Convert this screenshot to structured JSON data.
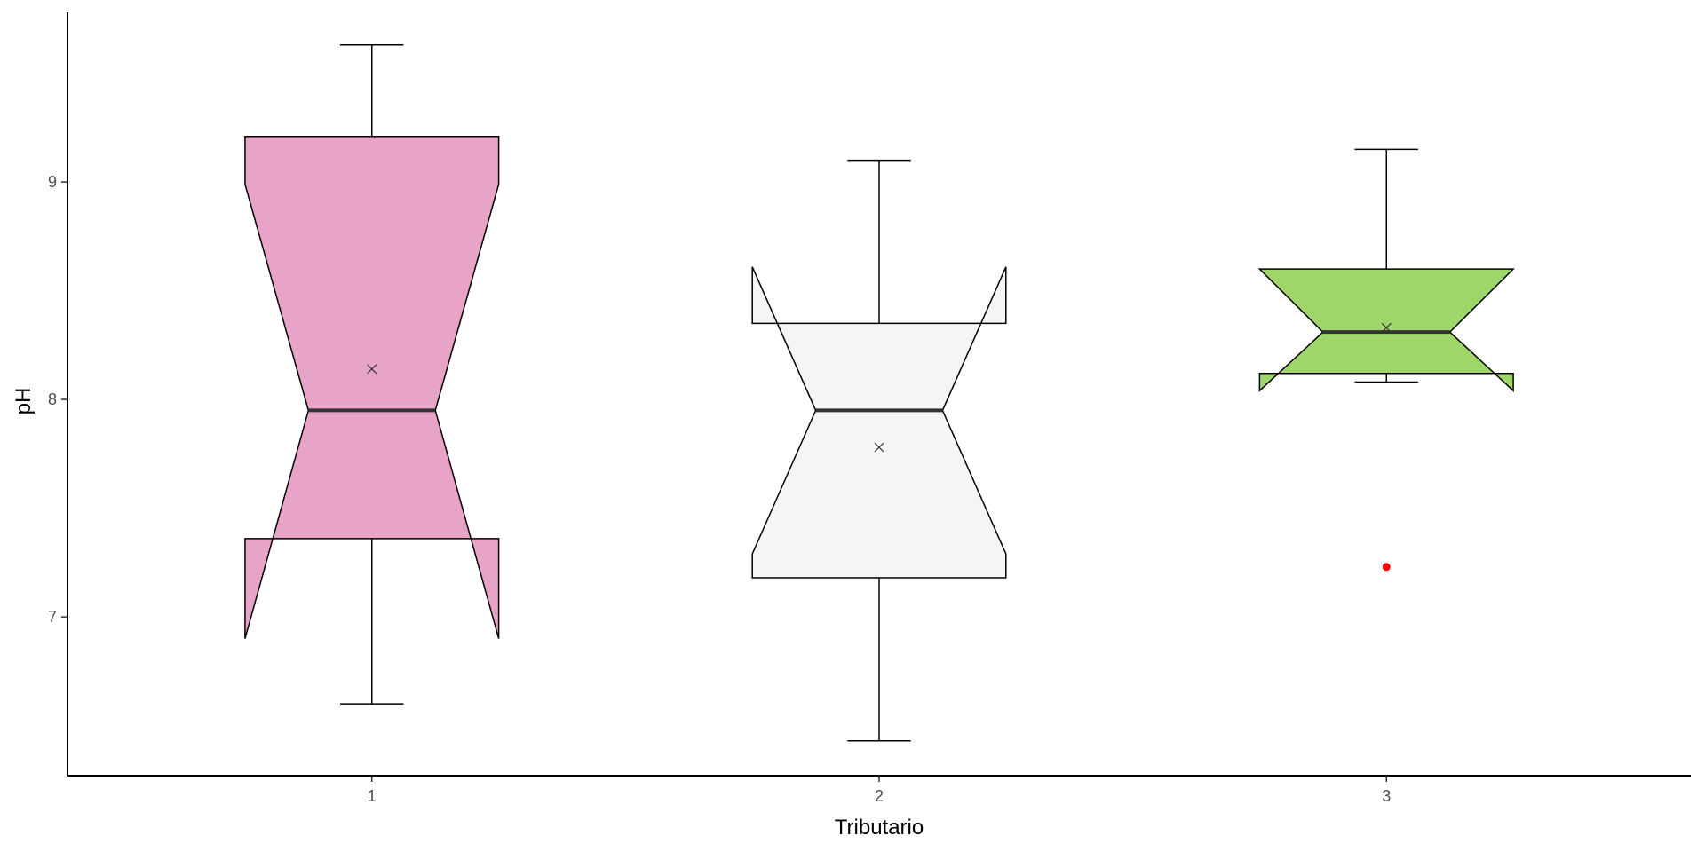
{
  "chart_data": {
    "type": "boxplot",
    "notched": true,
    "title": "",
    "xlabel": "Tributario",
    "ylabel": "pH",
    "categories": [
      "1",
      "2",
      "3"
    ],
    "ylim": [
      6.27,
      9.78
    ],
    "yticks": [
      7,
      8,
      9
    ],
    "grid": false,
    "legend": "none",
    "boxes": [
      {
        "category": "1",
        "min": 6.6,
        "q1": 7.36,
        "median": 7.95,
        "q3": 9.21,
        "max": 9.63,
        "notch_low": 6.9,
        "notch_high": 8.99,
        "mean": 8.14,
        "outliers": [],
        "fill": "#e8a3c8"
      },
      {
        "category": "2",
        "min": 6.43,
        "q1": 7.18,
        "median": 7.95,
        "q3": 8.35,
        "max": 9.1,
        "notch_low": 7.29,
        "notch_high": 8.61,
        "mean": 7.78,
        "outliers": [],
        "fill": "#f5f5f5"
      },
      {
        "category": "3",
        "min": 8.08,
        "q1": 8.12,
        "median": 8.31,
        "q3": 8.6,
        "max": 9.15,
        "notch_low": 8.04,
        "notch_high": 8.6,
        "mean": 8.33,
        "outliers": [
          7.23
        ],
        "fill": "#9fd66a"
      }
    ],
    "outlier_color": "#ff0000",
    "line_color": "#000000",
    "median_color": "#333333"
  }
}
